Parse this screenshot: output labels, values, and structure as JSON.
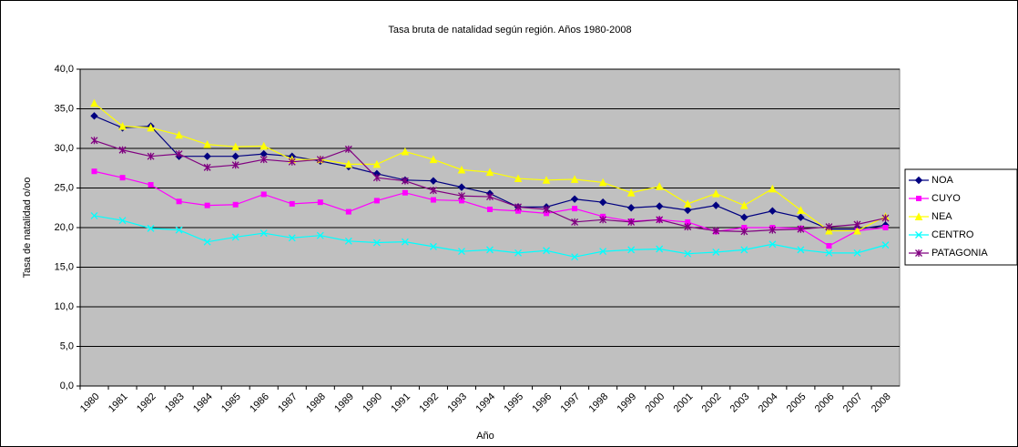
{
  "chart_data": {
    "type": "line",
    "title": "Tasa bruta de natalidad según región. Años 1980-2008",
    "x_label": "Año",
    "y_label": "Tasa de natalidad  o/oo",
    "categories": [
      "1980",
      "1981",
      "1982",
      "1983",
      "1984",
      "1985",
      "1986",
      "1987",
      "1988",
      "1989",
      "1990",
      "1991",
      "1992",
      "1993",
      "1994",
      "1995",
      "1996",
      "1997",
      "1998",
      "1999",
      "2000",
      "2001",
      "2002",
      "2003",
      "2004",
      "2005",
      "2006",
      "2007",
      "2008"
    ],
    "ylim": [
      0,
      40
    ],
    "yticks": [
      {
        "value": 0,
        "label": "0,0"
      },
      {
        "value": 5,
        "label": "5,0"
      },
      {
        "value": 10,
        "label": "10,0"
      },
      {
        "value": 15,
        "label": "15,0"
      },
      {
        "value": 20,
        "label": "20,0"
      },
      {
        "value": 25,
        "label": "25,0"
      },
      {
        "value": 30,
        "label": "30,0"
      },
      {
        "value": 35,
        "label": "35,0"
      },
      {
        "value": 40,
        "label": "40,0"
      }
    ],
    "grid": true,
    "legend": "right",
    "series": [
      {
        "name": "NOA",
        "color": "#000080",
        "marker": "diamond",
        "values": [
          34.1,
          32.6,
          32.8,
          29.0,
          29.0,
          29.0,
          29.3,
          29.0,
          28.4,
          27.7,
          26.8,
          26.0,
          25.9,
          25.1,
          24.3,
          22.6,
          22.6,
          23.6,
          23.2,
          22.5,
          22.7,
          22.2,
          22.8,
          21.3,
          22.1,
          21.3,
          19.8,
          19.8,
          20.3
        ]
      },
      {
        "name": "CUYO",
        "color": "#ff00ff",
        "marker": "square",
        "values": [
          27.1,
          26.3,
          25.4,
          23.3,
          22.8,
          22.9,
          24.2,
          23.0,
          23.2,
          22.0,
          23.4,
          24.4,
          23.5,
          23.4,
          22.3,
          22.1,
          21.8,
          22.4,
          21.4,
          20.8,
          21.0,
          20.7,
          19.5,
          20.0,
          20.0,
          19.9,
          17.7,
          19.6,
          20.0
        ]
      },
      {
        "name": "NEA",
        "color": "#ffff00",
        "marker": "triangle",
        "values": [
          35.7,
          32.8,
          32.6,
          31.7,
          30.5,
          30.2,
          30.3,
          28.6,
          28.6,
          28.0,
          28.0,
          29.6,
          28.6,
          27.3,
          27.0,
          26.2,
          26.0,
          26.1,
          25.7,
          24.4,
          25.2,
          23.0,
          24.3,
          22.8,
          24.9,
          22.2,
          19.6,
          19.6,
          21.4
        ]
      },
      {
        "name": "CENTRO",
        "color": "#00ffff",
        "marker": "x",
        "values": [
          21.5,
          20.9,
          19.9,
          19.7,
          18.2,
          18.8,
          19.3,
          18.7,
          19.0,
          18.3,
          18.1,
          18.2,
          17.6,
          17.0,
          17.2,
          16.8,
          17.1,
          16.3,
          17.0,
          17.2,
          17.3,
          16.7,
          16.9,
          17.2,
          17.9,
          17.2,
          16.8,
          16.8,
          17.8
        ]
      },
      {
        "name": "PATAGONIA",
        "color": "#800080",
        "marker": "star",
        "values": [
          31.0,
          29.8,
          29.0,
          29.3,
          27.6,
          27.9,
          28.6,
          28.3,
          28.6,
          29.9,
          26.3,
          25.9,
          24.7,
          24.0,
          23.9,
          22.6,
          22.3,
          20.7,
          21.0,
          20.7,
          21.0,
          20.1,
          19.6,
          19.5,
          19.7,
          19.8,
          20.1,
          20.4,
          21.2
        ]
      }
    ]
  }
}
